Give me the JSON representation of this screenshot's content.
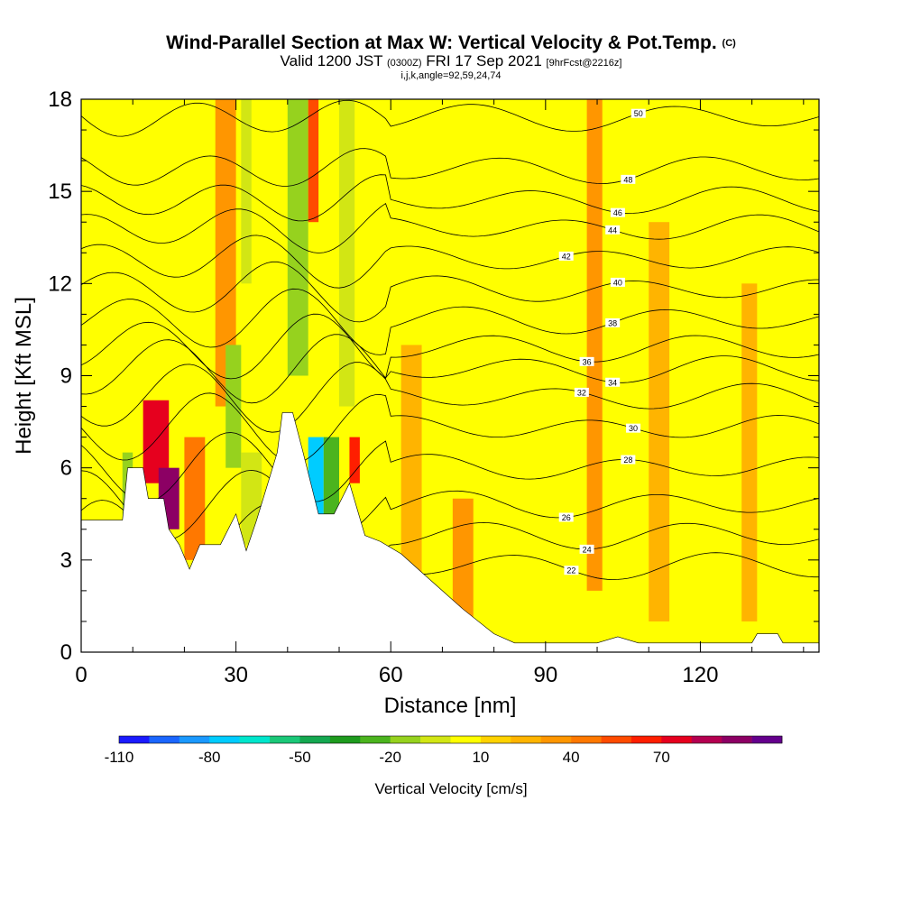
{
  "header": {
    "title": "Wind-Parallel Section at Max W: Vertical Velocity & Pot.Temp.",
    "copyright": "(C)",
    "valid_prefix": "Valid 1200 JST",
    "valid_utc": "(0300Z)",
    "valid_date": "FRI 17 Sep 2021",
    "forecast": "[9hrFcst@2216z]",
    "grid_info": "i,j,k,angle=92,59,24,74"
  },
  "colors": {
    "background": "#ffff00",
    "terrain": "#ffffff"
  },
  "chart_data": {
    "type": "heatmap",
    "title": "Wind-Parallel Section at Max W: Vertical Velocity & Pot.Temp.",
    "xlabel": "Distance [nm]",
    "ylabel": "Height [Kft MSL]",
    "xlim": [
      0,
      143
    ],
    "ylim": [
      0,
      18
    ],
    "x_ticks": [
      "0",
      "30",
      "60",
      "90",
      "120"
    ],
    "y_ticks": [
      "0",
      "3",
      "6",
      "9",
      "12",
      "15",
      "18"
    ],
    "colorbar": {
      "label": "Vertical Velocity [cm/s]",
      "tick_labels": [
        "-110",
        "-80",
        "-50",
        "-20",
        "10",
        "40",
        "70"
      ],
      "colors": [
        "#1a1aff",
        "#1a66ff",
        "#1a99ff",
        "#00ccff",
        "#00e6cc",
        "#1ac878",
        "#14a850",
        "#1e9b1e",
        "#4bb41e",
        "#96d21e",
        "#d2e614",
        "#ffff00",
        "#ffd200",
        "#ffb400",
        "#ff9600",
        "#ff7800",
        "#ff4b00",
        "#ff1e00",
        "#e6001e",
        "#b40050",
        "#8c0064",
        "#64008c"
      ]
    },
    "velocity_cells": [
      {
        "x0": 12,
        "x1": 17,
        "y0": 5.5,
        "y1": 8.2,
        "w": 60
      },
      {
        "x0": 15,
        "x1": 19,
        "y0": 4,
        "y1": 6,
        "w": 80
      },
      {
        "x0": 8,
        "x1": 10,
        "y0": 4.3,
        "y1": 6.5,
        "w": -30
      },
      {
        "x0": 20,
        "x1": 24,
        "y0": 3,
        "y1": 7,
        "w": 25
      },
      {
        "x0": 26,
        "x1": 30,
        "y0": 8,
        "y1": 18,
        "w": 20
      },
      {
        "x0": 28,
        "x1": 31,
        "y0": 6,
        "y1": 10,
        "w": -30
      },
      {
        "x0": 31,
        "x1": 35,
        "y0": 3.5,
        "y1": 6.5,
        "w": -25
      },
      {
        "x0": 31,
        "x1": 33,
        "y0": 12,
        "y1": 18,
        "w": -20
      },
      {
        "x0": 40,
        "x1": 44,
        "y0": 9,
        "y1": 18,
        "w": -30
      },
      {
        "x0": 44,
        "x1": 46,
        "y0": 14,
        "y1": 18,
        "w": 40
      },
      {
        "x0": 44,
        "x1": 47,
        "y0": 4.5,
        "y1": 7,
        "w": -90
      },
      {
        "x0": 47,
        "x1": 50,
        "y0": 4.5,
        "y1": 7,
        "w": -40
      },
      {
        "x0": 52,
        "x1": 54,
        "y0": 5.5,
        "y1": 7,
        "w": 50
      },
      {
        "x0": 50,
        "x1": 53,
        "y0": 8,
        "y1": 18,
        "w": -20
      },
      {
        "x0": 98,
        "x1": 101,
        "y0": 2,
        "y1": 18,
        "w": 15
      },
      {
        "x0": 110,
        "x1": 114,
        "y0": 1,
        "y1": 14,
        "w": 14
      },
      {
        "x0": 128,
        "x1": 131,
        "y0": 1,
        "y1": 12,
        "w": 14
      },
      {
        "x0": 72,
        "x1": 76,
        "y0": 1,
        "y1": 5,
        "w": 16
      },
      {
        "x0": 62,
        "x1": 66,
        "y0": 2,
        "y1": 10,
        "w": 12
      }
    ],
    "terrain": [
      [
        0,
        4.3
      ],
      [
        8,
        4.3
      ],
      [
        9,
        6
      ],
      [
        12,
        6
      ],
      [
        13,
        5
      ],
      [
        16,
        5
      ],
      [
        17,
        4
      ],
      [
        19,
        3.5
      ],
      [
        21,
        2.7
      ],
      [
        23,
        3.5
      ],
      [
        27,
        3.5
      ],
      [
        30,
        4.5
      ],
      [
        32,
        3.3
      ],
      [
        34,
        4.3
      ],
      [
        38,
        6.5
      ],
      [
        39,
        7.8
      ],
      [
        41,
        7.8
      ],
      [
        43,
        6.5
      ],
      [
        46,
        4.5
      ],
      [
        49,
        4.5
      ],
      [
        52,
        5.5
      ],
      [
        55,
        3.8
      ],
      [
        58,
        3.6
      ],
      [
        62,
        3.2
      ],
      [
        66,
        2.6
      ],
      [
        70,
        2.0
      ],
      [
        74,
        1.4
      ],
      [
        80,
        0.6
      ],
      [
        84,
        0.3
      ],
      [
        100,
        0.3
      ],
      [
        104,
        0.5
      ],
      [
        108,
        0.3
      ],
      [
        130,
        0.3
      ],
      [
        131,
        0.6
      ],
      [
        135,
        0.6
      ],
      [
        136,
        0.3
      ],
      [
        143,
        0.3
      ]
    ],
    "theta_contours": [
      {
        "label": "22",
        "y": 2.8,
        "label_x": 95
      },
      {
        "label": "24",
        "y": 3.8,
        "label_x": 98
      },
      {
        "label": "26",
        "y": 4.8,
        "label_x": 94
      },
      {
        "label": "28",
        "y": 6.0,
        "label_x": 106
      },
      {
        "label": "30",
        "y": 7.3,
        "label_x": 107
      },
      {
        "label": "32",
        "y": 8.3,
        "label_x": 97
      },
      {
        "label": "34",
        "y": 9.2,
        "label_x": 103
      },
      {
        "label": "36",
        "y": 9.9,
        "label_x": 98
      },
      {
        "label": "38",
        "y": 10.8,
        "label_x": 103
      },
      {
        "label": "40",
        "y": 11.8,
        "label_x": 104
      },
      {
        "label": "42",
        "y": 12.8,
        "label_x": 94
      },
      {
        "label": "44",
        "y": 13.8,
        "label_x": 103
      },
      {
        "label": "46",
        "y": 14.7,
        "label_x": 104
      },
      {
        "label": "48",
        "y": 15.7,
        "label_x": 106
      },
      {
        "label": "50",
        "y": 17.4,
        "label_x": 108
      }
    ]
  }
}
